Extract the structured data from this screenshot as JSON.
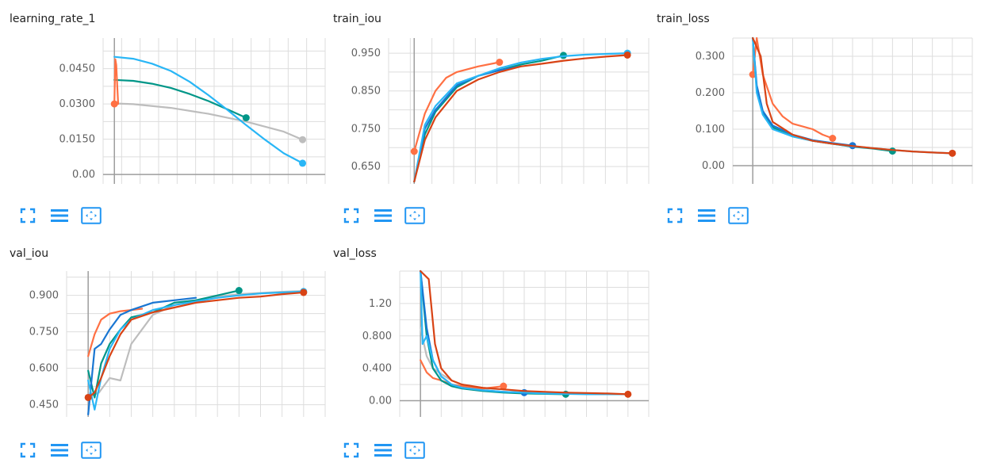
{
  "colors": {
    "orange": "#ff7043",
    "gray": "#bdbdbd",
    "green": "#009688",
    "sky": "#29b6f6",
    "blue": "#1976d2",
    "red": "#d84315",
    "teal": "#00acc1",
    "grid": "#dddddd",
    "axis": "#9e9e9e",
    "icon": "#2196f3"
  },
  "toolbar": [
    "expand-icon",
    "list-icon",
    "fit-domain-icon"
  ],
  "charts": [
    {
      "id": "learning_rate_1",
      "title": "learning_rate_1",
      "chart_data": {
        "type": "line",
        "title": "learning_rate_1",
        "xlabel": "",
        "ylabel": "",
        "ylim": [
          -0.004,
          0.058
        ],
        "xlim": [
          -0.06,
          1.12
        ],
        "yticks": [
          0.0,
          0.015,
          0.03,
          0.045
        ],
        "ytick_labels": [
          "0.00",
          "0.0150",
          "0.0300",
          "0.0450"
        ],
        "grid": true,
        "series": [
          {
            "color": "#bdbdbd",
            "x": [
              0.0,
              0.1,
              0.3,
              0.5,
              0.7,
              0.9,
              1.0
            ],
            "y": [
              0.0302,
              0.0299,
              0.0283,
              0.0258,
              0.0225,
              0.0182,
              0.0148
            ],
            "end": true
          },
          {
            "color": "#009688",
            "x": [
              0.0,
              0.1,
              0.2,
              0.3,
              0.4,
              0.5,
              0.6,
              0.7
            ],
            "y": [
              0.0402,
              0.0398,
              0.0386,
              0.0368,
              0.0342,
              0.0312,
              0.0277,
              0.0241
            ],
            "end": true
          },
          {
            "color": "#29b6f6",
            "x": [
              0.0,
              0.1,
              0.2,
              0.3,
              0.4,
              0.5,
              0.6,
              0.7,
              0.8,
              0.9,
              1.0
            ],
            "y": [
              0.05,
              0.0492,
              0.0471,
              0.044,
              0.0394,
              0.0337,
              0.0275,
              0.021,
              0.0148,
              0.009,
              0.0048
            ],
            "end": true
          },
          {
            "color": "#ff7043",
            "x": [
              0.0,
              0.005,
              0.01,
              0.015,
              0.02
            ],
            "y": [
              0.03,
              0.049,
              0.0465,
              0.038,
              0.03
            ],
            "start": true
          }
        ]
      }
    },
    {
      "id": "train_iou",
      "title": "train_iou",
      "chart_data": {
        "type": "line",
        "title": "train_iou",
        "xlabel": "",
        "ylabel": "",
        "ylim": [
          0.604,
          0.99
        ],
        "xlim": [
          -0.12,
          1.1
        ],
        "yticks": [
          0.65,
          0.75,
          0.85,
          0.95
        ],
        "ytick_labels": [
          "0.650",
          "0.750",
          "0.850",
          "0.950"
        ],
        "grid": true,
        "series": [
          {
            "color": "#ff7043",
            "x": [
              0.0,
              0.05,
              0.1,
              0.15,
              0.2,
              0.3,
              0.4
            ],
            "y": [
              0.69,
              0.79,
              0.85,
              0.885,
              0.9,
              0.915,
              0.926
            ],
            "start": true,
            "end": true
          },
          {
            "color": "#009688",
            "x": [
              0.0,
              0.05,
              0.1,
              0.2,
              0.3,
              0.4,
              0.5,
              0.6,
              0.7
            ],
            "y": [
              0.61,
              0.735,
              0.795,
              0.86,
              0.89,
              0.905,
              0.92,
              0.93,
              0.944
            ],
            "end": true
          },
          {
            "color": "#1976d2",
            "x": [
              0.0,
              0.05,
              0.1,
              0.2,
              0.3,
              0.4,
              0.5
            ],
            "y": [
              0.61,
              0.75,
              0.8,
              0.865,
              0.89,
              0.905,
              0.915
            ]
          },
          {
            "color": "#29b6f6",
            "x": [
              0.0,
              0.05,
              0.1,
              0.2,
              0.3,
              0.4,
              0.5,
              0.6,
              0.7,
              0.8,
              0.9,
              1.0
            ],
            "y": [
              0.61,
              0.76,
              0.81,
              0.87,
              0.89,
              0.91,
              0.925,
              0.935,
              0.942,
              0.946,
              0.948,
              0.95
            ],
            "end": true
          },
          {
            "color": "#d84315",
            "x": [
              0.0,
              0.05,
              0.1,
              0.2,
              0.3,
              0.4,
              0.5,
              0.6,
              0.7,
              0.8,
              0.9,
              1.0
            ],
            "y": [
              0.61,
              0.72,
              0.78,
              0.85,
              0.88,
              0.9,
              0.915,
              0.922,
              0.93,
              0.936,
              0.941,
              0.945
            ],
            "end": true
          }
        ]
      }
    },
    {
      "id": "train_loss",
      "title": "train_loss",
      "chart_data": {
        "type": "line",
        "title": "train_loss",
        "xlabel": "",
        "ylabel": "",
        "ylim": [
          -0.05,
          0.35
        ],
        "xlim": [
          -0.1,
          1.1
        ],
        "yticks": [
          0.0,
          0.1,
          0.2,
          0.3
        ],
        "ytick_labels": [
          "0.00",
          "0.100",
          "0.200",
          "0.300"
        ],
        "grid": true,
        "series": [
          {
            "color": "#ff7043",
            "x": [
              0.0,
              0.02,
              0.05,
              0.1,
              0.15,
              0.2,
              0.3,
              0.35,
              0.4
            ],
            "y": [
              0.25,
              0.35,
              0.25,
              0.17,
              0.135,
              0.115,
              0.1,
              0.085,
              0.075
            ],
            "start": true,
            "end": true
          },
          {
            "color": "#009688",
            "x": [
              0.0,
              0.02,
              0.05,
              0.1,
              0.2,
              0.3,
              0.4,
              0.5,
              0.6,
              0.7
            ],
            "y": [
              0.35,
              0.21,
              0.145,
              0.105,
              0.08,
              0.068,
              0.06,
              0.052,
              0.047,
              0.04
            ],
            "end": true
          },
          {
            "color": "#1976d2",
            "x": [
              0.0,
              0.02,
              0.05,
              0.1,
              0.2,
              0.3,
              0.4,
              0.5
            ],
            "y": [
              0.35,
              0.22,
              0.15,
              0.11,
              0.085,
              0.07,
              0.062,
              0.055
            ],
            "end": true
          },
          {
            "color": "#29b6f6",
            "x": [
              0.0,
              0.02,
              0.05,
              0.1,
              0.2,
              0.3,
              0.4,
              0.5,
              0.6,
              0.7,
              0.8,
              0.9,
              1.0
            ],
            "y": [
              0.35,
              0.2,
              0.14,
              0.1,
              0.08,
              0.068,
              0.06,
              0.053,
              0.048,
              0.043,
              0.039,
              0.036,
              0.034
            ]
          },
          {
            "color": "#d84315",
            "x": [
              0.0,
              0.04,
              0.07,
              0.1,
              0.2,
              0.3,
              0.4,
              0.5,
              0.6,
              0.7,
              0.8,
              0.9,
              1.0
            ],
            "y": [
              0.35,
              0.3,
              0.17,
              0.12,
              0.085,
              0.068,
              0.06,
              0.054,
              0.048,
              0.043,
              0.039,
              0.036,
              0.034
            ],
            "end": true
          }
        ]
      }
    },
    {
      "id": "val_iou",
      "title": "val_iou",
      "chart_data": {
        "type": "line",
        "title": "val_iou",
        "xlabel": "",
        "ylabel": "",
        "ylim": [
          0.4,
          1.0
        ],
        "xlim": [
          -0.1,
          1.1
        ],
        "yticks": [
          0.45,
          0.6,
          0.75,
          0.9
        ],
        "ytick_labels": [
          "0.450",
          "0.600",
          "0.750",
          "0.900"
        ],
        "grid": true,
        "series": [
          {
            "color": "#bdbdbd",
            "x": [
              0.0,
              0.05,
              0.1,
              0.15,
              0.2,
              0.3,
              0.4,
              0.5,
              0.6,
              0.7,
              0.8,
              0.9,
              1.0
            ],
            "y": [
              0.48,
              0.5,
              0.56,
              0.55,
              0.7,
              0.82,
              0.86,
              0.88,
              0.895,
              0.905,
              0.91,
              0.915,
              0.918
            ]
          },
          {
            "color": "#ff7043",
            "x": [
              0.0,
              0.03,
              0.06,
              0.1,
              0.15,
              0.2,
              0.25
            ],
            "y": [
              0.65,
              0.74,
              0.8,
              0.825,
              0.835,
              0.84,
              0.845
            ]
          },
          {
            "color": "#009688",
            "x": [
              0.0,
              0.03,
              0.06,
              0.1,
              0.15,
              0.2,
              0.3,
              0.4,
              0.5,
              0.6,
              0.7
            ],
            "y": [
              0.59,
              0.48,
              0.62,
              0.7,
              0.76,
              0.81,
              0.83,
              0.87,
              0.88,
              0.9,
              0.92
            ],
            "end": true
          },
          {
            "color": "#1976d2",
            "x": [
              0.0,
              0.03,
              0.06,
              0.1,
              0.15,
              0.2,
              0.3,
              0.4,
              0.5
            ],
            "y": [
              0.41,
              0.68,
              0.7,
              0.76,
              0.82,
              0.84,
              0.87,
              0.88,
              0.89
            ]
          },
          {
            "color": "#29b6f6",
            "x": [
              0.0,
              0.03,
              0.06,
              0.1,
              0.15,
              0.2,
              0.3,
              0.4,
              0.5,
              0.6,
              0.7,
              0.8,
              0.9,
              1.0
            ],
            "y": [
              0.55,
              0.43,
              0.56,
              0.68,
              0.76,
              0.8,
              0.84,
              0.86,
              0.875,
              0.89,
              0.9,
              0.908,
              0.912,
              0.916
            ],
            "end": true
          },
          {
            "color": "#d84315",
            "x": [
              0.0,
              0.03,
              0.06,
              0.1,
              0.15,
              0.2,
              0.3,
              0.4,
              0.5,
              0.6,
              0.7,
              0.8,
              0.9,
              1.0
            ],
            "y": [
              0.48,
              0.5,
              0.56,
              0.65,
              0.74,
              0.8,
              0.83,
              0.85,
              0.87,
              0.88,
              0.89,
              0.895,
              0.905,
              0.912
            ],
            "start": true,
            "end": true
          }
        ]
      }
    },
    {
      "id": "val_loss",
      "title": "val_loss",
      "chart_data": {
        "type": "line",
        "title": "val_loss",
        "xlabel": "",
        "ylabel": "",
        "ylim": [
          -0.2,
          1.6
        ],
        "xlim": [
          -0.1,
          1.1
        ],
        "yticks": [
          0.0,
          0.4,
          0.8,
          1.2
        ],
        "ytick_labels": [
          "0.00",
          "0.400",
          "0.800",
          "1.20"
        ],
        "grid": true,
        "series": [
          {
            "color": "#bdbdbd",
            "x": [
              0.0,
              0.03,
              0.06,
              0.1,
              0.15,
              0.2,
              0.3,
              0.4
            ],
            "y": [
              0.9,
              0.55,
              0.4,
              0.33,
              0.25,
              0.2,
              0.15,
              0.14
            ]
          },
          {
            "color": "#ff7043",
            "x": [
              0.0,
              0.03,
              0.06,
              0.1,
              0.15,
              0.2,
              0.25,
              0.3,
              0.4
            ],
            "y": [
              0.5,
              0.35,
              0.28,
              0.25,
              0.2,
              0.18,
              0.16,
              0.15,
              0.18
            ],
            "end": true
          },
          {
            "color": "#009688",
            "x": [
              0.0,
              0.03,
              0.06,
              0.1,
              0.15,
              0.2,
              0.3,
              0.4,
              0.5,
              0.6,
              0.7
            ],
            "y": [
              1.6,
              0.8,
              0.4,
              0.25,
              0.18,
              0.15,
              0.12,
              0.1,
              0.09,
              0.085,
              0.08
            ],
            "end": true
          },
          {
            "color": "#1976d2",
            "x": [
              0.0,
              0.03,
              0.06,
              0.1,
              0.15,
              0.2,
              0.3,
              0.4,
              0.5
            ],
            "y": [
              1.6,
              0.9,
              0.5,
              0.3,
              0.2,
              0.16,
              0.13,
              0.11,
              0.1
            ],
            "end": true
          },
          {
            "color": "#29b6f6",
            "x": [
              0.0,
              0.01,
              0.03,
              0.06,
              0.1,
              0.15,
              0.2,
              0.3,
              0.4,
              0.5,
              0.6,
              0.7,
              0.8,
              0.9,
              1.0
            ],
            "y": [
              1.6,
              0.7,
              0.8,
              0.5,
              0.3,
              0.2,
              0.16,
              0.13,
              0.11,
              0.1,
              0.09,
              0.085,
              0.08,
              0.08,
              0.08
            ]
          },
          {
            "color": "#d84315",
            "x": [
              0.0,
              0.04,
              0.07,
              0.1,
              0.15,
              0.2,
              0.3,
              0.4,
              0.5,
              0.6,
              0.7,
              0.8,
              0.9,
              1.0
            ],
            "y": [
              1.6,
              1.5,
              0.7,
              0.4,
              0.25,
              0.2,
              0.16,
              0.14,
              0.12,
              0.11,
              0.1,
              0.095,
              0.09,
              0.08
            ],
            "end": true
          }
        ]
      }
    }
  ]
}
